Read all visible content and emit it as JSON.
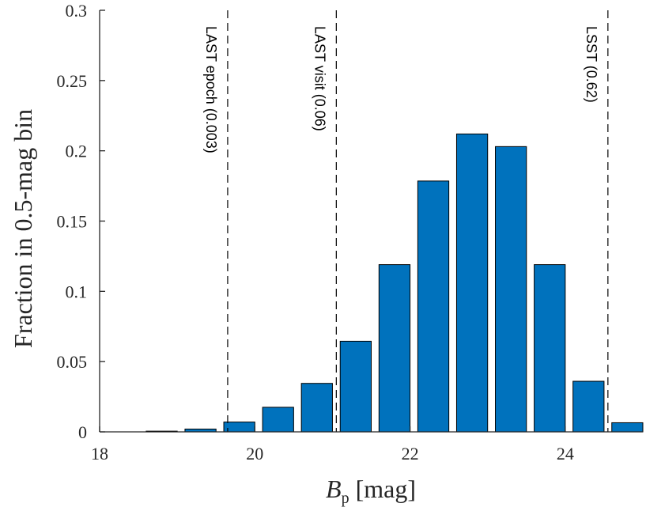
{
  "chart_data": {
    "type": "bar",
    "title": "",
    "xlabel_main": "B",
    "xlabel_sub": "p",
    "xlabel_unit": "[mag]",
    "ylabel": "Fraction in 0.5-mag bin",
    "xlim": [
      18,
      25
    ],
    "ylim": [
      0,
      0.3
    ],
    "xticks": [
      18,
      20,
      22,
      24
    ],
    "xtick_labels": [
      "18",
      "20",
      "22",
      "24"
    ],
    "yticks": [
      0,
      0.05,
      0.1,
      0.15,
      0.2,
      0.25,
      0.3
    ],
    "ytick_labels": [
      "0",
      "0.05",
      "0.1",
      "0.15",
      "0.2",
      "0.25",
      "0.3"
    ],
    "bar_width": 0.4,
    "x": [
      18.8,
      19.3,
      19.8,
      20.3,
      20.8,
      21.3,
      21.8,
      22.3,
      22.8,
      23.3,
      23.8,
      24.3,
      24.8
    ],
    "values": [
      0.0005,
      0.002,
      0.007,
      0.0175,
      0.0345,
      0.0645,
      0.119,
      0.1785,
      0.212,
      0.203,
      0.119,
      0.036,
      0.0065
    ],
    "bar_color": "#0072BD",
    "grid": false,
    "vlines": [
      {
        "x": 19.65,
        "label": "LAST epoch (0.003)"
      },
      {
        "x": 21.05,
        "label": "LAST visit (0.06)"
      },
      {
        "x": 24.55,
        "label": "LSST (0.62)"
      }
    ]
  }
}
